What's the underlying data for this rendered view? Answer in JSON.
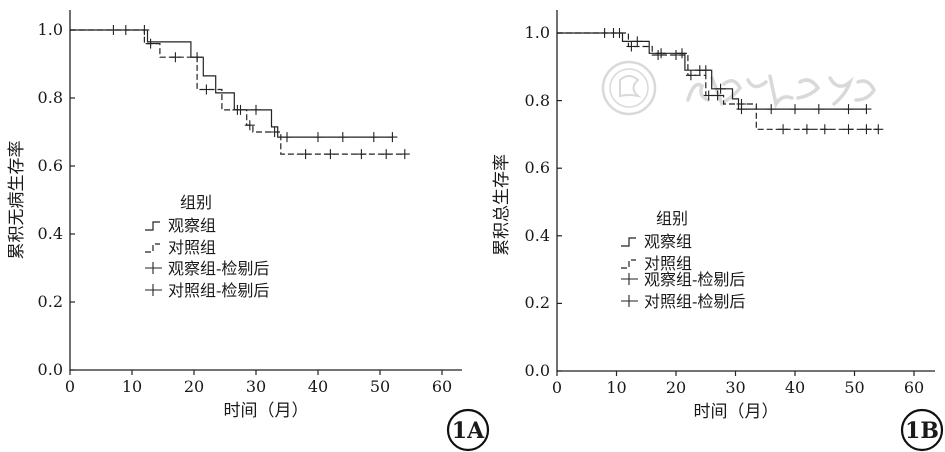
{
  "figure": {
    "panels": [
      {
        "panel_label": "1A",
        "chart_data": {
          "type": "line",
          "title": "",
          "xlabel": "时间（月）",
          "ylabel": "累积无病生存率",
          "xlim": [
            0,
            60
          ],
          "ylim": [
            0,
            1.0
          ],
          "xticks": [
            "0",
            "10",
            "20",
            "30",
            "40",
            "50",
            "60"
          ],
          "yticks": [
            "0.0",
            "0.2",
            "0.4",
            "0.6",
            "0.8",
            "1.0"
          ],
          "legend": {
            "title": "组别",
            "placement": "center-left",
            "entries": [
              "观察组",
              "对照组",
              "观察组-检剔后",
              "对照组-检剔后"
            ]
          },
          "series": [
            {
              "name": "观察组",
              "style": "solid-step",
              "points": [
                [
                  0,
                  1.0
                ],
                [
                  12.5,
                  1.0
                ],
                [
                  12.5,
                  0.965
                ],
                [
                  19.5,
                  0.965
                ],
                [
                  19.5,
                  0.92
                ],
                [
                  21.5,
                  0.92
                ],
                [
                  21.5,
                  0.865
                ],
                [
                  23.5,
                  0.865
                ],
                [
                  23.5,
                  0.815
                ],
                [
                  26.5,
                  0.815
                ],
                [
                  26.5,
                  0.765
                ],
                [
                  32.5,
                  0.765
                ],
                [
                  32.5,
                  0.715
                ],
                [
                  33.5,
                  0.715
                ],
                [
                  33.5,
                  0.685
                ],
                [
                  52,
                  0.685
                ]
              ],
              "censored_x": [
                7,
                9,
                12,
                20.5,
                27.5,
                30,
                35,
                40,
                44,
                49,
                52
              ]
            },
            {
              "name": "对照组",
              "style": "dashed-step",
              "points": [
                [
                  0,
                  1.0
                ],
                [
                  12,
                  1.0
                ],
                [
                  12,
                  0.96
                ],
                [
                  14.5,
                  0.96
                ],
                [
                  14.5,
                  0.92
                ],
                [
                  20.5,
                  0.92
                ],
                [
                  20.5,
                  0.825
                ],
                [
                  24.5,
                  0.825
                ],
                [
                  24.5,
                  0.765
                ],
                [
                  28.5,
                  0.765
                ],
                [
                  28.5,
                  0.72
                ],
                [
                  29.5,
                  0.72
                ],
                [
                  29.5,
                  0.7
                ],
                [
                  34,
                  0.7
                ],
                [
                  34,
                  0.635
                ],
                [
                  54,
                  0.635
                ]
              ],
              "censored_x": [
                13,
                17,
                22,
                27,
                29,
                33,
                38,
                42,
                47,
                51,
                54
              ]
            }
          ]
        }
      },
      {
        "panel_label": "1B",
        "chart_data": {
          "type": "line",
          "title": "",
          "xlabel": "时间（月）",
          "ylabel": "累积总生存率",
          "xlim": [
            0,
            60
          ],
          "ylim": [
            0,
            1.0
          ],
          "xticks": [
            "0",
            "10",
            "20",
            "30",
            "40",
            "50",
            "60"
          ],
          "yticks": [
            "0.0",
            "0.2",
            "0.4",
            "0.6",
            "0.8",
            "1.0"
          ],
          "legend": {
            "title": "组别",
            "placement": "bottom-center",
            "entries": [
              "观察组",
              "对照组",
              "观察组-检剔后",
              "对照组-检剔后"
            ]
          },
          "series": [
            {
              "name": "观察组",
              "style": "solid-step",
              "points": [
                [
                  0,
                  1.0
                ],
                [
                  11,
                  1.0
                ],
                [
                  11,
                  0.975
                ],
                [
                  15.5,
                  0.975
                ],
                [
                  15.5,
                  0.94
                ],
                [
                  21.5,
                  0.94
                ],
                [
                  21.5,
                  0.89
                ],
                [
                  26,
                  0.89
                ],
                [
                  26,
                  0.835
                ],
                [
                  29.5,
                  0.835
                ],
                [
                  29.5,
                  0.805
                ],
                [
                  30.5,
                  0.805
                ],
                [
                  30.5,
                  0.775
                ],
                [
                  52,
                  0.775
                ]
              ],
              "censored_x": [
                8,
                9.5,
                10.5,
                13.5,
                17.5,
                21,
                24,
                25,
                27.5,
                31,
                36,
                40,
                44,
                49,
                52
              ]
            },
            {
              "name": "对照组",
              "style": "dashed-step",
              "points": [
                [
                  0,
                  1.0
                ],
                [
                  12,
                  1.0
                ],
                [
                  12,
                  0.96
                ],
                [
                  16,
                  0.96
                ],
                [
                  16,
                  0.935
                ],
                [
                  22,
                  0.935
                ],
                [
                  22,
                  0.875
                ],
                [
                  25,
                  0.875
                ],
                [
                  25,
                  0.815
                ],
                [
                  28,
                  0.815
                ],
                [
                  28,
                  0.79
                ],
                [
                  33.5,
                  0.79
                ],
                [
                  33.5,
                  0.715
                ],
                [
                  54,
                  0.715
                ]
              ],
              "censored_x": [
                12.5,
                17,
                20,
                22.5,
                25.5,
                27,
                31,
                38,
                42,
                45,
                49,
                52,
                54
              ]
            }
          ]
        }
      }
    ]
  }
}
